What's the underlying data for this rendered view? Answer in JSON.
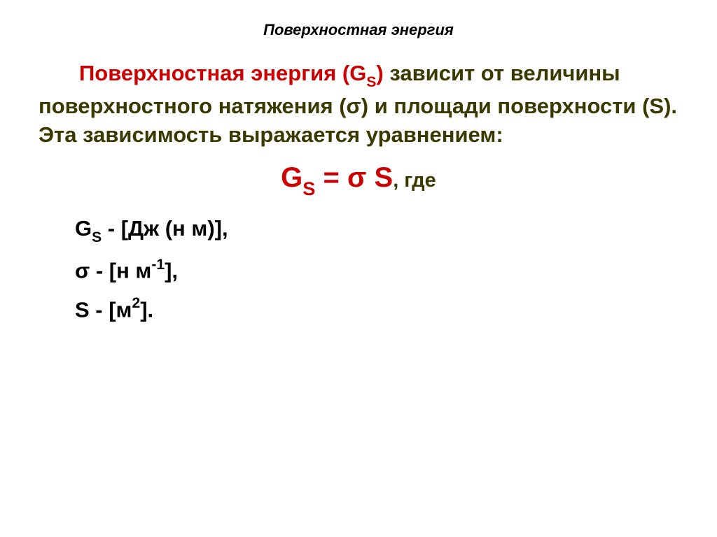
{
  "title": "Поверхностная энергия",
  "paragraph": {
    "lead_red": "Поверхностная энергия (G",
    "lead_sub": "S",
    "lead_red_close": ")",
    "rest": " зависит от величины поверхностного натяжения (σ) и площади поверхности (S). Эта зависимость выражается уравнением:"
  },
  "equation": {
    "symbol_G": "G",
    "symbol_S_sub": "S",
    "eq_mid": " = σ S",
    "comma_where": ", где"
  },
  "defs": {
    "g": {
      "sym": "G",
      "sub": "S",
      "rest": " - [Дж (н м)],"
    },
    "sigma": {
      "sym": "σ - [н м",
      "sup": "-1",
      "rest": "],"
    },
    "s": {
      "sym": "S - [м",
      "sup": "2",
      "rest": "]."
    }
  },
  "colors": {
    "red": "#cc0000",
    "dark_olive": "#3a3a00",
    "black": "#000000",
    "background": "#ffffff"
  },
  "fonts": {
    "title_size_pt": 16,
    "body_size_pt": 23,
    "equation_size_pt": 30,
    "where_size_pt": 22,
    "family": "Arial"
  }
}
